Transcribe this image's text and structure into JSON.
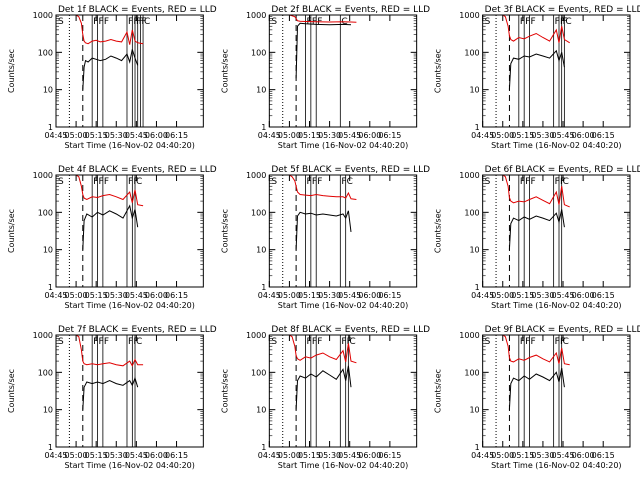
{
  "start_time_label": "Start Time (16-Nov-02 04:40:20)",
  "ylabel": "Counts/sec",
  "x_ticks": [
    "04:45",
    "05:00",
    "05:15",
    "05:30",
    "05:45",
    "06:00",
    "06:15"
  ],
  "y_ticks": [
    "1",
    "10",
    "100",
    "1000"
  ],
  "colors": {
    "events": "#000000",
    "lld": "#e00000",
    "axes": "#000000"
  },
  "chart_data": [
    {
      "type": "line",
      "title": "Det 1f BLACK = Events, RED = LLD",
      "flags": [
        "S",
        "F",
        "F",
        "F",
        "F",
        "F",
        "F",
        "F",
        "F",
        "C"
      ],
      "ylim": [
        1,
        1000
      ],
      "ylog": true,
      "series": [
        {
          "name": "Events",
          "x": [
            5,
            6,
            7,
            9,
            12,
            15,
            18,
            22,
            26,
            30,
            34,
            38,
            40,
            42,
            44,
            46
          ],
          "y": [
            10,
            40,
            60,
            55,
            70,
            65,
            60,
            65,
            80,
            70,
            60,
            90,
            55,
            120,
            70,
            45
          ]
        },
        {
          "name": "LLD",
          "x": [
            0,
            2,
            4,
            5,
            6,
            7,
            9,
            12,
            15,
            18,
            22,
            26,
            30,
            34,
            38,
            40,
            42,
            44,
            46,
            50
          ],
          "y": [
            1000,
            900,
            600,
            300,
            200,
            180,
            170,
            200,
            210,
            190,
            200,
            220,
            200,
            190,
            350,
            160,
            400,
            200,
            180,
            170
          ]
        }
      ]
    },
    {
      "type": "line",
      "title": "Det 2f BLACK = Events, RED = LLD",
      "flags": [
        "S",
        "F",
        "F",
        "F",
        "C"
      ],
      "ylim": [
        1,
        1000
      ],
      "ylog": true,
      "series": [
        {
          "name": "Events",
          "x": [
            5,
            6,
            8,
            12,
            20,
            30,
            40,
            46
          ],
          "y": [
            20,
            500,
            600,
            580,
            560,
            550,
            560,
            550
          ]
        },
        {
          "name": "LLD",
          "x": [
            0,
            2,
            4,
            5,
            6,
            8,
            12,
            20,
            30,
            40,
            46,
            50
          ],
          "y": [
            1000,
            950,
            900,
            800,
            700,
            680,
            670,
            660,
            650,
            660,
            650,
            640
          ]
        }
      ]
    },
    {
      "type": "line",
      "title": "Det 3f BLACK = Events, RED = LLD",
      "flags": [
        "S",
        "F",
        "F",
        "F",
        "F",
        "F",
        "F",
        "C"
      ],
      "ylim": [
        1,
        1000
      ],
      "ylog": true,
      "series": [
        {
          "name": "Events",
          "x": [
            5,
            6,
            8,
            12,
            16,
            20,
            25,
            30,
            35,
            40,
            42,
            44,
            46
          ],
          "y": [
            10,
            50,
            70,
            65,
            80,
            75,
            90,
            80,
            70,
            110,
            60,
            100,
            40
          ]
        },
        {
          "name": "LLD",
          "x": [
            0,
            2,
            4,
            5,
            6,
            8,
            12,
            16,
            20,
            25,
            30,
            35,
            40,
            42,
            44,
            46,
            50
          ],
          "y": [
            1000,
            900,
            500,
            280,
            220,
            200,
            250,
            230,
            270,
            320,
            250,
            200,
            400,
            180,
            500,
            220,
            180
          ]
        }
      ]
    },
    {
      "type": "line",
      "title": "Det 4f BLACK = Events, RED = LLD",
      "flags": [
        "S",
        "F",
        "F",
        "F",
        "F",
        "F",
        "C"
      ],
      "ylim": [
        1,
        1000
      ],
      "ylog": true,
      "series": [
        {
          "name": "Events",
          "x": [
            5,
            6,
            8,
            12,
            16,
            20,
            25,
            30,
            35,
            40,
            42,
            44,
            46
          ],
          "y": [
            10,
            60,
            90,
            75,
            100,
            85,
            110,
            90,
            70,
            150,
            70,
            120,
            40
          ]
        },
        {
          "name": "LLD",
          "x": [
            0,
            2,
            4,
            5,
            6,
            8,
            12,
            16,
            20,
            25,
            30,
            35,
            40,
            42,
            44,
            46,
            50
          ],
          "y": [
            1000,
            900,
            500,
            300,
            240,
            220,
            260,
            250,
            280,
            300,
            260,
            220,
            350,
            180,
            400,
            160,
            150
          ]
        }
      ]
    },
    {
      "type": "line",
      "title": "Det 5f BLACK = Events, RED = LLD",
      "flags": [
        "S",
        "F",
        "F",
        "F",
        "F",
        "C"
      ],
      "ylim": [
        1,
        1000
      ],
      "ylog": true,
      "series": [
        {
          "name": "Events",
          "x": [
            5,
            6,
            8,
            12,
            16,
            20,
            25,
            30,
            35,
            40,
            42,
            44,
            46
          ],
          "y": [
            10,
            80,
            100,
            90,
            95,
            85,
            90,
            85,
            80,
            90,
            70,
            110,
            30
          ]
        },
        {
          "name": "LLD",
          "x": [
            0,
            2,
            4,
            5,
            6,
            8,
            12,
            16,
            20,
            25,
            30,
            35,
            40,
            42,
            44,
            46,
            50
          ],
          "y": [
            1000,
            900,
            700,
            500,
            350,
            300,
            290,
            280,
            300,
            280,
            270,
            260,
            260,
            240,
            330,
            230,
            220
          ]
        }
      ]
    },
    {
      "type": "line",
      "title": "Det 6f BLACK = Events, RED = LLD",
      "flags": [
        "S",
        "F",
        "F",
        "F",
        "F",
        "F",
        "C"
      ],
      "ylim": [
        1,
        1000
      ],
      "ylog": true,
      "series": [
        {
          "name": "Events",
          "x": [
            5,
            6,
            8,
            12,
            16,
            20,
            25,
            30,
            35,
            40,
            42,
            44,
            46
          ],
          "y": [
            10,
            50,
            70,
            60,
            75,
            65,
            80,
            70,
            60,
            95,
            55,
            120,
            40
          ]
        },
        {
          "name": "LLD",
          "x": [
            0,
            2,
            4,
            5,
            6,
            8,
            12,
            16,
            20,
            25,
            30,
            35,
            40,
            42,
            44,
            46,
            50
          ],
          "y": [
            1000,
            900,
            500,
            250,
            200,
            180,
            200,
            190,
            220,
            260,
            210,
            170,
            350,
            160,
            500,
            160,
            140
          ]
        }
      ]
    },
    {
      "type": "line",
      "title": "Det 7f BLACK = Events, RED = LLD",
      "flags": [
        "S",
        "F",
        "F",
        "F",
        "F",
        "F",
        "C"
      ],
      "ylim": [
        1,
        1000
      ],
      "ylog": true,
      "series": [
        {
          "name": "Events",
          "x": [
            5,
            6,
            8,
            12,
            16,
            20,
            25,
            30,
            35,
            40,
            42,
            44,
            46
          ],
          "y": [
            10,
            40,
            55,
            50,
            55,
            50,
            60,
            50,
            45,
            60,
            45,
            70,
            40
          ]
        },
        {
          "name": "LLD",
          "x": [
            0,
            2,
            4,
            5,
            6,
            8,
            12,
            16,
            20,
            25,
            30,
            35,
            40,
            42,
            44,
            46,
            50
          ],
          "y": [
            1000,
            900,
            400,
            200,
            170,
            160,
            170,
            160,
            170,
            180,
            160,
            150,
            200,
            150,
            220,
            160,
            160
          ]
        }
      ]
    },
    {
      "type": "line",
      "title": "Det 8f BLACK = Events, RED = LLD",
      "flags": [
        "S",
        "F",
        "F",
        "F",
        "F",
        "F",
        "C"
      ],
      "ylim": [
        1,
        1000
      ],
      "ylog": true,
      "series": [
        {
          "name": "Events",
          "x": [
            5,
            6,
            8,
            12,
            16,
            20,
            25,
            30,
            35,
            40,
            42,
            44,
            46
          ],
          "y": [
            10,
            60,
            80,
            70,
            90,
            75,
            110,
            85,
            65,
            120,
            60,
            150,
            40
          ]
        },
        {
          "name": "LLD",
          "x": [
            0,
            2,
            4,
            5,
            6,
            8,
            12,
            16,
            20,
            25,
            30,
            35,
            40,
            42,
            44,
            46,
            50
          ],
          "y": [
            1000,
            900,
            500,
            280,
            230,
            210,
            260,
            240,
            290,
            330,
            260,
            220,
            380,
            190,
            600,
            200,
            180
          ]
        }
      ]
    },
    {
      "type": "line",
      "title": "Det 9f BLACK = Events, RED = LLD",
      "flags": [
        "S",
        "F",
        "F",
        "F",
        "F",
        "F",
        "C"
      ],
      "ylim": [
        1,
        1000
      ],
      "ylog": true,
      "series": [
        {
          "name": "Events",
          "x": [
            5,
            6,
            8,
            12,
            16,
            20,
            25,
            30,
            35,
            40,
            42,
            44,
            46
          ],
          "y": [
            10,
            50,
            70,
            60,
            80,
            65,
            90,
            75,
            60,
            100,
            55,
            130,
            40
          ]
        },
        {
          "name": "LLD",
          "x": [
            0,
            2,
            4,
            5,
            6,
            8,
            12,
            16,
            20,
            25,
            30,
            35,
            40,
            42,
            44,
            46,
            50
          ],
          "y": [
            1000,
            900,
            500,
            250,
            200,
            190,
            230,
            210,
            250,
            290,
            230,
            190,
            330,
            170,
            450,
            170,
            160
          ]
        }
      ]
    }
  ]
}
